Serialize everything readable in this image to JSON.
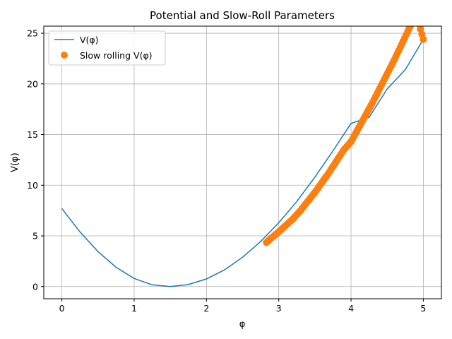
{
  "chart_data": {
    "type": "line",
    "title": "Potential and Slow-Roll Parameters",
    "xlabel": "φ",
    "ylabel": "V(φ)",
    "xlim": [
      -0.25,
      5.25
    ],
    "ylim": [
      -1.2,
      25.7
    ],
    "xticks": [
      0,
      1,
      2,
      3,
      4,
      5
    ],
    "yticks": [
      0,
      5,
      10,
      15,
      20,
      25
    ],
    "grid": true,
    "legend_position": "top-left",
    "colors": {
      "potential": "#1f77b4",
      "slow_roll": "#ff7f0e",
      "grid": "#b0b0b0"
    },
    "series": [
      {
        "name": "V(φ)",
        "style": "line",
        "x": [
          0,
          0.25,
          0.5,
          0.75,
          1.0,
          1.25,
          1.5,
          1.75,
          2.0,
          2.25,
          2.5,
          2.75,
          3.0,
          3.25,
          3.5,
          3.75,
          4.0,
          4.25,
          4.5,
          4.75,
          5.0
        ],
        "y": [
          7.7,
          5.4,
          3.45,
          1.9,
          0.8,
          0.17,
          0.0,
          0.2,
          0.75,
          1.65,
          2.9,
          4.45,
          6.3,
          8.4,
          10.8,
          13.4,
          16.1,
          16.7,
          19.5,
          21.4,
          24.4
        ]
      },
      {
        "name": "Slow rolling V(φ)",
        "style": "marker",
        "x": [
          2.83,
          2.9,
          3.0,
          3.1,
          3.2,
          3.3,
          3.4,
          3.5,
          3.6,
          3.7,
          3.8,
          3.9,
          4.0,
          4.1,
          4.2,
          4.3,
          4.4,
          4.5,
          4.6,
          4.7,
          4.8,
          4.9,
          5.0
        ],
        "y": [
          4.35,
          4.8,
          5.4,
          6.05,
          6.7,
          7.5,
          8.4,
          9.3,
          10.3,
          11.3,
          12.4,
          13.5,
          14.3,
          15.6,
          16.9,
          18.2,
          19.6,
          21.0,
          22.4,
          23.9,
          25.4,
          26.9,
          24.4
        ]
      }
    ]
  }
}
